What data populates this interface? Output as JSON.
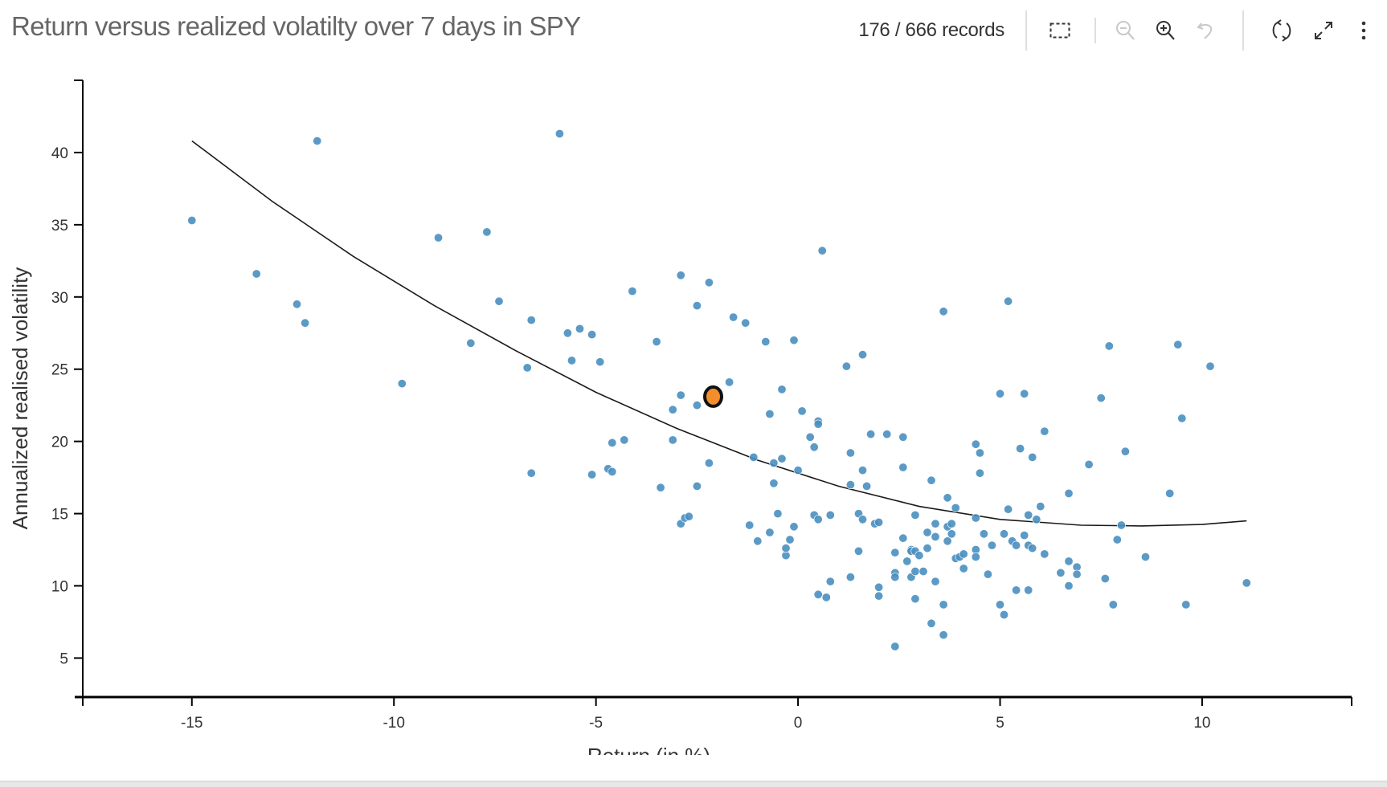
{
  "header": {
    "title": "Return versus realized volatilty over 7 days in SPY",
    "records": "176 / 666 records"
  },
  "toolbar": {
    "buttons": [
      {
        "name": "lasso-select",
        "icon": "dashed-rectangle-icon",
        "enabled": true
      },
      {
        "name": "zoom-out",
        "icon": "zoom-out-icon",
        "enabled": false
      },
      {
        "name": "zoom-in",
        "icon": "zoom-in-icon",
        "enabled": true
      },
      {
        "name": "undo-zoom",
        "icon": "undo-icon",
        "enabled": false
      },
      {
        "name": "refresh",
        "icon": "refresh-icon",
        "enabled": true
      },
      {
        "name": "expand",
        "icon": "expand-icon",
        "enabled": true
      },
      {
        "name": "more",
        "icon": "more-vertical-icon",
        "enabled": true
      }
    ]
  },
  "colors": {
    "point": "#4a8fc0",
    "highlight_fill": "#f28e2b",
    "highlight_stroke": "#111111",
    "fit_line": "#1a1a1a",
    "axis": "#000000",
    "title": "#666666"
  },
  "chart_data": {
    "type": "scatter",
    "title": "Return versus realized volatilty over 7 days in SPY",
    "xlabel": "Return (in %)",
    "ylabel": "Annualized realised volatility",
    "xlim": [
      -17.7,
      13.7
    ],
    "ylim": [
      2.3,
      45
    ],
    "xticks": [
      -15,
      -10,
      -5,
      0,
      5,
      10
    ],
    "xtick_labels": [
      "-15",
      "-10",
      "-5",
      "0",
      "5",
      "10"
    ],
    "yticks": [
      5,
      10,
      15,
      20,
      25,
      30,
      35,
      40
    ],
    "ytick_labels": [
      "5",
      "10",
      "15",
      "20",
      "25",
      "30",
      "35",
      "40"
    ],
    "grid": false,
    "legend": "none",
    "highlighted_point": {
      "x": -2.1,
      "y": 23.1
    },
    "fit_curve": {
      "type": "polynomial",
      "points": [
        [
          -15.0,
          40.8
        ],
        [
          -13.0,
          36.6
        ],
        [
          -11.0,
          32.8
        ],
        [
          -9.0,
          29.4
        ],
        [
          -7.0,
          26.3
        ],
        [
          -5.0,
          23.4
        ],
        [
          -3.0,
          20.9
        ],
        [
          -1.0,
          18.7
        ],
        [
          1.0,
          16.9
        ],
        [
          3.0,
          15.5
        ],
        [
          5.0,
          14.6
        ],
        [
          7.0,
          14.2
        ],
        [
          8.5,
          14.15
        ],
        [
          10.0,
          14.25
        ],
        [
          11.1,
          14.5
        ]
      ]
    },
    "points": [
      [
        -15.0,
        35.3
      ],
      [
        -13.4,
        31.6
      ],
      [
        -12.4,
        29.5
      ],
      [
        -12.2,
        28.2
      ],
      [
        -11.9,
        40.8
      ],
      [
        -9.8,
        24.0
      ],
      [
        -8.9,
        34.1
      ],
      [
        -8.1,
        26.8
      ],
      [
        -7.7,
        34.5
      ],
      [
        -7.4,
        29.7
      ],
      [
        -6.7,
        25.1
      ],
      [
        -6.6,
        28.4
      ],
      [
        -6.6,
        17.8
      ],
      [
        -5.9,
        41.3
      ],
      [
        -5.7,
        27.5
      ],
      [
        -5.6,
        25.6
      ],
      [
        -5.4,
        27.8
      ],
      [
        -5.1,
        27.4
      ],
      [
        -5.1,
        17.7
      ],
      [
        -4.9,
        25.5
      ],
      [
        -4.7,
        18.1
      ],
      [
        -4.6,
        19.9
      ],
      [
        -4.6,
        17.9
      ],
      [
        -4.3,
        20.1
      ],
      [
        -4.1,
        30.4
      ],
      [
        -3.5,
        26.9
      ],
      [
        -3.4,
        16.8
      ],
      [
        -3.1,
        22.2
      ],
      [
        -3.1,
        20.1
      ],
      [
        -2.9,
        31.5
      ],
      [
        -2.9,
        23.2
      ],
      [
        -2.9,
        14.3
      ],
      [
        -2.8,
        14.7
      ],
      [
        -2.7,
        14.8
      ],
      [
        -2.5,
        29.4
      ],
      [
        -2.5,
        16.9
      ],
      [
        -2.5,
        22.5
      ],
      [
        -2.2,
        31.0
      ],
      [
        -2.2,
        18.5
      ],
      [
        -1.7,
        24.1
      ],
      [
        -1.6,
        28.6
      ],
      [
        -1.3,
        28.2
      ],
      [
        -1.2,
        14.2
      ],
      [
        -1.1,
        18.9
      ],
      [
        -1.0,
        13.1
      ],
      [
        -0.8,
        26.9
      ],
      [
        -0.7,
        21.9
      ],
      [
        -0.7,
        13.7
      ],
      [
        -0.6,
        17.1
      ],
      [
        -0.6,
        18.5
      ],
      [
        -0.5,
        15.0
      ],
      [
        -0.4,
        18.8
      ],
      [
        -0.4,
        23.6
      ],
      [
        -0.3,
        12.1
      ],
      [
        -0.3,
        12.6
      ],
      [
        -0.2,
        13.2
      ],
      [
        -0.1,
        14.1
      ],
      [
        -0.1,
        27.0
      ],
      [
        0.0,
        18.0
      ],
      [
        0.1,
        22.1
      ],
      [
        0.3,
        20.3
      ],
      [
        0.4,
        14.9
      ],
      [
        0.4,
        19.6
      ],
      [
        0.5,
        21.4
      ],
      [
        0.5,
        21.2
      ],
      [
        0.5,
        14.6
      ],
      [
        0.5,
        9.4
      ],
      [
        0.6,
        33.2
      ],
      [
        0.7,
        9.2
      ],
      [
        0.8,
        14.9
      ],
      [
        0.8,
        10.3
      ],
      [
        1.2,
        25.2
      ],
      [
        1.3,
        19.2
      ],
      [
        1.3,
        17.0
      ],
      [
        1.3,
        10.6
      ],
      [
        1.5,
        15.0
      ],
      [
        1.5,
        12.4
      ],
      [
        1.6,
        14.6
      ],
      [
        1.6,
        18.0
      ],
      [
        1.6,
        26.0
      ],
      [
        1.7,
        16.9
      ],
      [
        1.8,
        20.5
      ],
      [
        1.9,
        14.3
      ],
      [
        2.0,
        14.4
      ],
      [
        2.0,
        9.9
      ],
      [
        2.0,
        9.3
      ],
      [
        2.2,
        20.5
      ],
      [
        2.4,
        10.9
      ],
      [
        2.4,
        10.6
      ],
      [
        2.4,
        12.3
      ],
      [
        2.4,
        5.8
      ],
      [
        2.6,
        20.3
      ],
      [
        2.6,
        18.2
      ],
      [
        2.6,
        13.3
      ],
      [
        2.7,
        11.7
      ],
      [
        2.8,
        12.5
      ],
      [
        2.8,
        12.4
      ],
      [
        2.8,
        10.6
      ],
      [
        2.9,
        14.9
      ],
      [
        2.9,
        12.4
      ],
      [
        2.9,
        11.0
      ],
      [
        2.9,
        9.1
      ],
      [
        3.0,
        12.1
      ],
      [
        3.1,
        11.0
      ],
      [
        3.2,
        13.7
      ],
      [
        3.2,
        12.6
      ],
      [
        3.3,
        17.3
      ],
      [
        3.3,
        7.4
      ],
      [
        3.4,
        13.4
      ],
      [
        3.4,
        10.3
      ],
      [
        3.4,
        14.3
      ],
      [
        3.6,
        29.0
      ],
      [
        3.6,
        6.6
      ],
      [
        3.6,
        8.7
      ],
      [
        3.7,
        13.1
      ],
      [
        3.7,
        16.1
      ],
      [
        3.7,
        14.1
      ],
      [
        3.8,
        13.6
      ],
      [
        3.8,
        14.3
      ],
      [
        3.9,
        15.4
      ],
      [
        3.9,
        11.9
      ],
      [
        4.0,
        12.0
      ],
      [
        4.1,
        12.2
      ],
      [
        4.1,
        11.2
      ],
      [
        4.4,
        14.7
      ],
      [
        4.4,
        12.5
      ],
      [
        4.4,
        12.0
      ],
      [
        4.4,
        19.8
      ],
      [
        4.5,
        19.2
      ],
      [
        4.5,
        17.8
      ],
      [
        4.6,
        13.6
      ],
      [
        4.7,
        10.8
      ],
      [
        4.8,
        12.8
      ],
      [
        5.0,
        23.3
      ],
      [
        5.1,
        13.6
      ],
      [
        5.0,
        8.7
      ],
      [
        5.1,
        8.0
      ],
      [
        5.2,
        15.3
      ],
      [
        5.2,
        29.7
      ],
      [
        5.3,
        13.1
      ],
      [
        5.4,
        12.8
      ],
      [
        5.4,
        9.7
      ],
      [
        5.5,
        19.5
      ],
      [
        5.6,
        13.5
      ],
      [
        5.6,
        23.3
      ],
      [
        5.7,
        14.9
      ],
      [
        5.7,
        12.8
      ],
      [
        5.7,
        9.7
      ],
      [
        5.8,
        12.6
      ],
      [
        5.8,
        18.9
      ],
      [
        5.9,
        14.6
      ],
      [
        6.0,
        15.5
      ],
      [
        6.1,
        12.2
      ],
      [
        6.1,
        20.7
      ],
      [
        6.5,
        10.9
      ],
      [
        6.7,
        16.4
      ],
      [
        6.7,
        11.7
      ],
      [
        6.7,
        10.0
      ],
      [
        6.9,
        11.3
      ],
      [
        6.9,
        10.8
      ],
      [
        7.2,
        18.4
      ],
      [
        7.5,
        23.0
      ],
      [
        7.6,
        10.5
      ],
      [
        7.7,
        26.6
      ],
      [
        7.8,
        8.7
      ],
      [
        7.9,
        13.2
      ],
      [
        8.0,
        14.2
      ],
      [
        8.1,
        19.3
      ],
      [
        8.6,
        12.0
      ],
      [
        9.2,
        16.4
      ],
      [
        9.4,
        26.7
      ],
      [
        9.5,
        21.6
      ],
      [
        9.6,
        8.7
      ],
      [
        10.2,
        25.2
      ],
      [
        11.1,
        10.2
      ],
      [
        -2.1,
        23.1
      ]
    ]
  }
}
